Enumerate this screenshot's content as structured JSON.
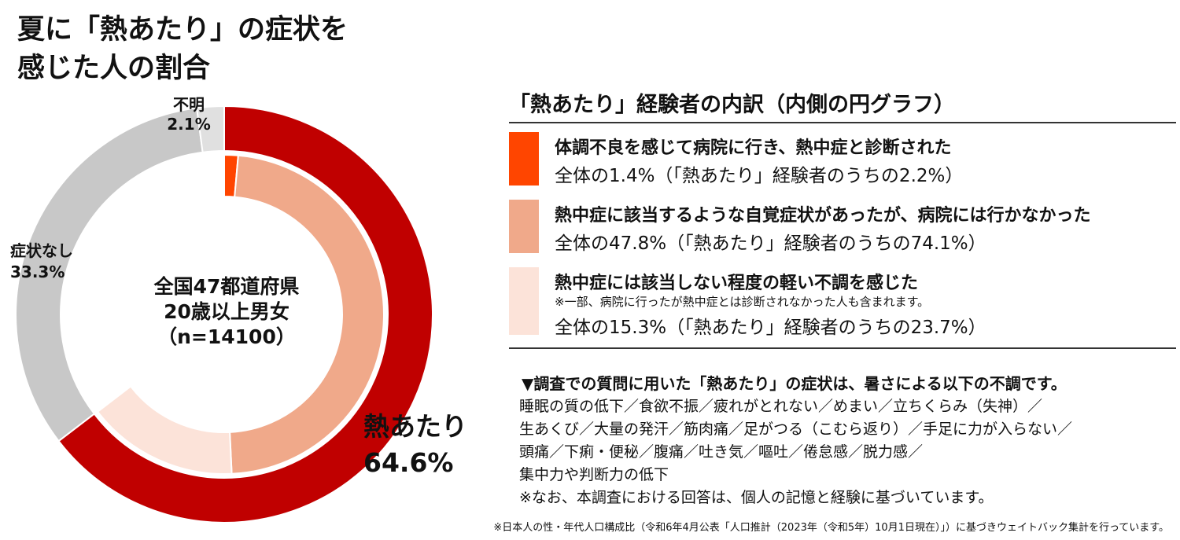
{
  "title": {
    "line1": "夏に「熱あたり」の症状を",
    "line2": "感じた人の割合"
  },
  "center": {
    "line1": "全国47都道府県",
    "line2": "20歳以上男女",
    "line3": "（n=14100）"
  },
  "legend": {
    "title": "「熱あたり」経験者の内訳（内側の円グラフ）",
    "items": [
      {
        "main": "体調不良を感じて病院に行き、熱中症と診断された",
        "note": "",
        "sub": "全体の1.4%（「熱あたり」経験者のうちの2.2%）",
        "color": "#FF4500"
      },
      {
        "main": "熱中症に該当するような自覚症状があったが、病院には行かなかった",
        "note": "",
        "sub": "全体の47.8%（「熱あたり」経験者のうちの74.1%）",
        "color": "#F0A98A"
      },
      {
        "main": "熱中症には該当しない程度の軽い不調を感じた",
        "note": "※一部、病院に行ったが熱中症とは診断されなかった人も含まれます。",
        "sub": "全体の15.3%（「熱あたり」経験者のうちの23.7%）",
        "color": "#FCE3D9"
      }
    ]
  },
  "symptoms": {
    "heading": "▼調査での質問に用いた「熱あたり」の症状は、暑さによる以下の不調です。",
    "lines": [
      "睡眠の質の低下／食欲不振／疲れがとれない／めまい／立ちくらみ（失神）／",
      "生あくび／大量の発汗／筋肉痛／足がつる（こむら返り）／手足に力が入らない／",
      "頭痛／下痢・便秘／腹痛／吐き気／嘔吐／倦怠感／脱力感／",
      "集中力や判断力の低下",
      "※なお、本調査における回答は、個人の記憶と経験に基づいています。"
    ]
  },
  "footnote": "※日本人の性・年代人口構成比（令和6年4月公表「人口推計（2023年（令和5年）10月1日現在）」）に基づきウェイトバック集計を行っています。",
  "chart_data": [
    {
      "type": "pie",
      "name": "outer",
      "slices": [
        {
          "label": "熱あたり",
          "value": 64.6,
          "value_label": "64.6%",
          "color": "#C00000"
        },
        {
          "label": "症状なし",
          "value": 33.3,
          "value_label": "33.3%",
          "color": "#C8C8C8"
        },
        {
          "label": "不明",
          "value": 2.1,
          "value_label": "2.1%",
          "color": "#E0E0E0"
        }
      ]
    },
    {
      "type": "pie",
      "name": "inner",
      "slices": [
        {
          "label": "体調不良を感じて病院に行き、熱中症と診断された",
          "value": 1.4,
          "color": "#FF4500"
        },
        {
          "label": "熱中症に該当するような自覚症状があったが、病院には行かなかった",
          "value": 47.8,
          "color": "#F0A98A"
        },
        {
          "label": "熱中症には該当しない程度の軽い不調を感じた",
          "value": 15.3,
          "color": "#FCE3D9"
        },
        {
          "label": "",
          "value": 35.4,
          "color": "#FFFFFF"
        }
      ]
    }
  ]
}
